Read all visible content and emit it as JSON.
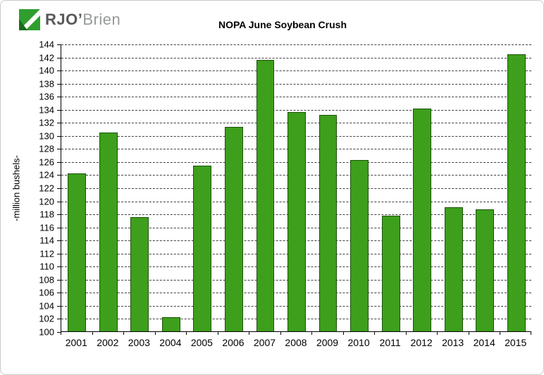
{
  "logo": {
    "text_primary": "RJO’",
    "text_secondary": "Brien",
    "icon": "rjo-brien-logo-mark",
    "green": "#2f9e2f",
    "green_dark": "#1c6b1c"
  },
  "chart_data": {
    "type": "bar",
    "title": "NOPA June Soybean Crush",
    "xlabel": "",
    "ylabel": "-million bushels-",
    "ylim": [
      100,
      144
    ],
    "ytick_step": 2,
    "yticks": [
      100,
      102,
      104,
      106,
      108,
      110,
      112,
      114,
      116,
      118,
      120,
      122,
      124,
      126,
      128,
      130,
      132,
      134,
      136,
      138,
      140,
      142,
      144
    ],
    "grid": "dashed-horizontal",
    "legend": "none",
    "bar_color": "#3d9f1c",
    "bar_border_color": "#1d5309",
    "categories": [
      "2001",
      "2002",
      "2003",
      "2004",
      "2005",
      "2006",
      "2007",
      "2008",
      "2009",
      "2010",
      "2011",
      "2012",
      "2013",
      "2014",
      "2015"
    ],
    "values": [
      124.2,
      130.4,
      117.5,
      102.2,
      125.3,
      131.3,
      141.5,
      133.5,
      133.1,
      126.2,
      117.7,
      134.1,
      119.0,
      118.7,
      142.4
    ]
  }
}
